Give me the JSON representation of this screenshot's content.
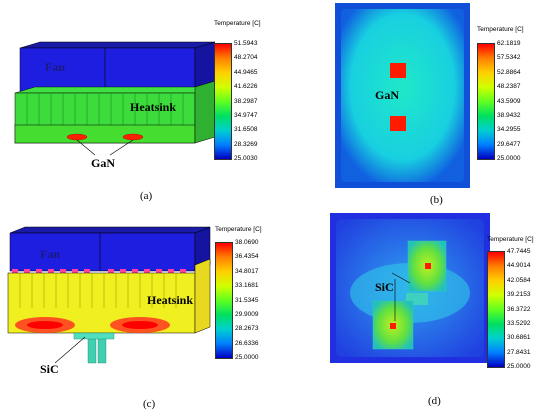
{
  "panels": [
    {
      "id": "a",
      "caption": "(a)",
      "labels": {
        "fan": "Fan",
        "heatsink": "Heatsink",
        "device": "GaN"
      },
      "legend": {
        "title": "Temperature [C]",
        "ticks": [
          "51.5943",
          "48.2704",
          "44.9465",
          "41.6226",
          "38.2987",
          "34.9747",
          "31.6508",
          "28.3269",
          "25.0030"
        ]
      }
    },
    {
      "id": "b",
      "caption": "(b)",
      "labels": {
        "device": "GaN"
      },
      "legend": {
        "title": "Temperature [C]",
        "ticks": [
          "62.1819",
          "57.5342",
          "52.8864",
          "48.2387",
          "43.5909",
          "38.9432",
          "34.2955",
          "29.6477",
          "25.0000"
        ]
      }
    },
    {
      "id": "c",
      "caption": "(c)",
      "labels": {
        "fan": "Fan",
        "heatsink": "Heatsink",
        "device": "SiC"
      },
      "legend": {
        "title": "Temperature [C]",
        "ticks": [
          "38.0690",
          "36.4354",
          "34.8017",
          "33.1681",
          "31.5345",
          "29.9009",
          "28.2673",
          "26.6336",
          "25.0000"
        ]
      }
    },
    {
      "id": "d",
      "caption": "(d)",
      "labels": {
        "device": "SiC"
      },
      "legend": {
        "title": "Temperature [C]",
        "ticks": [
          "47.7445",
          "44.9014",
          "42.0584",
          "39.2153",
          "36.3722",
          "33.5292",
          "30.6861",
          "27.8431",
          "25.0000"
        ]
      }
    }
  ],
  "colorbar": [
    "#ff0000",
    "#ff8000",
    "#ffd000",
    "#d0ff00",
    "#60ff20",
    "#00e060",
    "#00d0d0",
    "#0080ff",
    "#0000c0"
  ]
}
